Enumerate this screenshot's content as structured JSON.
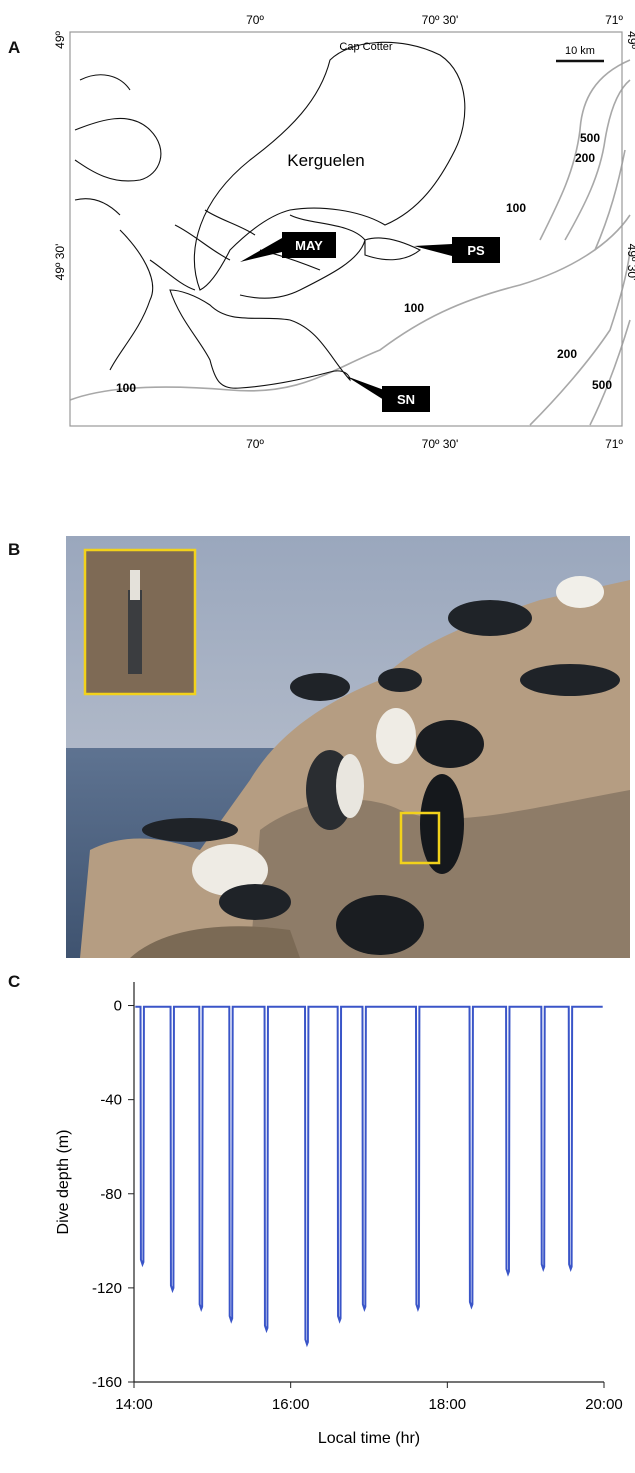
{
  "panels": {
    "a": "A",
    "b": "B",
    "c": "C"
  },
  "map": {
    "lon_labels": [
      "70º",
      "70º 30'",
      "71º"
    ],
    "lat_labels": [
      "49º",
      "49º 30'"
    ],
    "place_labels": {
      "cape": "Cap Cotter",
      "island": "Kerguelen"
    },
    "scale_bar": "10 km",
    "sites": [
      "MAY",
      "PS",
      "SN"
    ],
    "contours": [
      "500",
      "200",
      "100",
      "100",
      "200",
      "500",
      "100"
    ],
    "colors": {
      "coast": "#111111",
      "isobath": "#a8a8a8",
      "frame": "#999999"
    }
  },
  "photo": {
    "description_icon": "cormorant-colony-photo",
    "highlight_color": "#f2d21b"
  },
  "chart_data": {
    "type": "line",
    "xlabel": "Local time (hr)",
    "ylabel": "Dive depth (m)",
    "xlim": [
      "14:00",
      "20:00"
    ],
    "ylim": [
      -160,
      10
    ],
    "x_ticks": [
      "14:00",
      "16:00",
      "18:00",
      "20:00"
    ],
    "y_ticks": [
      "0",
      "-40",
      "-80",
      "-120",
      "-160"
    ],
    "series_color": "#3a55c8",
    "dives": [
      {
        "time": "14:08",
        "max_depth": -110
      },
      {
        "time": "14:31",
        "max_depth": -121
      },
      {
        "time": "14:53",
        "max_depth": -129
      },
      {
        "time": "15:16",
        "max_depth": -134
      },
      {
        "time": "15:43",
        "max_depth": -138
      },
      {
        "time": "16:14",
        "max_depth": -144
      },
      {
        "time": "16:39",
        "max_depth": -134
      },
      {
        "time": "16:58",
        "max_depth": -129
      },
      {
        "time": "17:39",
        "max_depth": -129
      },
      {
        "time": "18:20",
        "max_depth": -128
      },
      {
        "time": "18:48",
        "max_depth": -114
      },
      {
        "time": "19:15",
        "max_depth": -112
      },
      {
        "time": "19:36",
        "max_depth": -112
      }
    ]
  }
}
